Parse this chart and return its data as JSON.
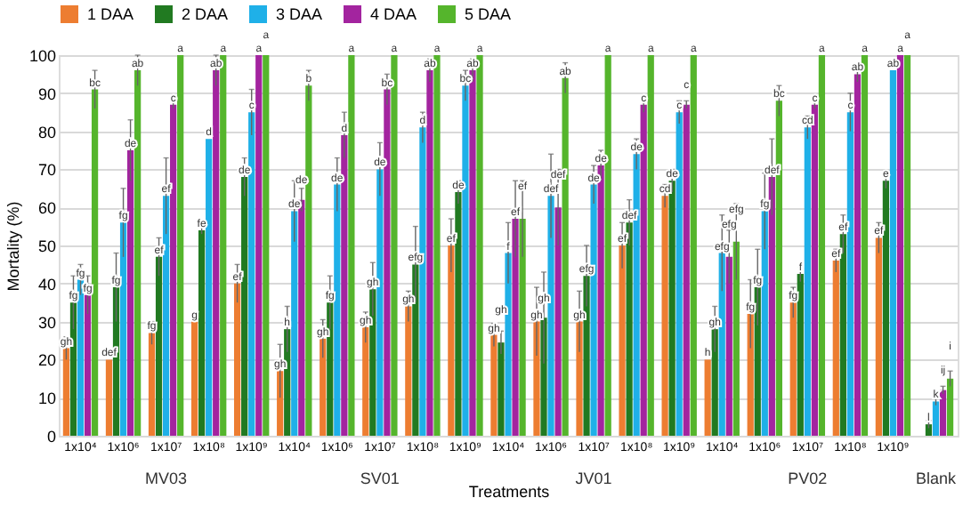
{
  "chart_data": {
    "type": "bar",
    "xlabel": "Treatments",
    "ylabel": "Mortality (%)",
    "categories": [
      "1x10⁴",
      "1x10⁶",
      "1x10⁷",
      "1x10⁸",
      "1x10⁹",
      "1x10⁴",
      "1x10⁶",
      "1x10⁷",
      "1x10⁸",
      "1x10⁹",
      "1x10⁴",
      "1x10⁶",
      "1x10⁷",
      "1x10⁸",
      "1x10⁹",
      "1x10⁴",
      "1x10⁶",
      "1x10⁷",
      "1x10⁸",
      "1x10⁹",
      null
    ],
    "annotations": [
      "MV03",
      "SV01",
      "JV01",
      "PV02",
      "Blank"
    ],
    "ylim": [
      0,
      100
    ],
    "yticks": [
      0,
      10,
      20,
      30,
      40,
      50,
      60,
      70,
      80,
      90,
      100
    ],
    "grid": "y",
    "legend": "top",
    "series": [
      {
        "name": "1 DAA",
        "color": "#ed7d31",
        "values": [
          23,
          20,
          27,
          30,
          40,
          17,
          25.5,
          28.5,
          34,
          50,
          26.5,
          30,
          30,
          50,
          63,
          20,
          32,
          35,
          46,
          52,
          0
        ],
        "errors": [
          3,
          null,
          3,
          null,
          5,
          7,
          5,
          4,
          4,
          7,
          3,
          9,
          8,
          6,
          3,
          null,
          9,
          4,
          3,
          4,
          null
        ],
        "value_labels": [
          "gh",
          "def",
          "fg",
          "g",
          "ef",
          "gh",
          "gh",
          "gh",
          "gh",
          "ef",
          "gh",
          "gh",
          "gh",
          "ef",
          "cd",
          "h",
          "fg",
          "fg",
          "ef",
          "ef",
          null
        ]
      },
      {
        "name": "2 DAA",
        "color": "#217a21",
        "values": [
          35,
          39,
          47,
          54,
          68,
          28,
          35,
          38.5,
          45,
          64,
          24.5,
          31,
          42,
          56,
          67,
          28,
          39,
          42.5,
          53,
          67,
          3
        ],
        "errors": [
          7,
          9,
          5,
          1,
          5,
          6,
          7,
          7,
          10,
          3,
          3,
          12,
          8,
          6,
          3,
          6,
          10,
          2,
          5,
          2,
          1
        ],
        "value_labels": [
          "fg",
          "fg",
          "ef",
          "fe",
          "de",
          "h",
          "fg",
          "gh",
          "efg",
          "de",
          "gh",
          "gh",
          "efg",
          "def",
          "de",
          "gh",
          "fg",
          "f",
          "ef",
          "e",
          "l"
        ]
      },
      {
        "name": "3 DAA",
        "color": "#1fb0e8",
        "values": [
          41,
          56,
          63,
          78,
          85,
          59,
          66,
          70,
          81,
          92,
          48,
          63,
          66,
          74,
          85,
          48,
          59,
          81,
          85,
          96,
          9
        ],
        "errors": [
          4,
          9,
          10,
          null,
          6,
          8,
          7,
          7,
          4,
          4,
          8,
          11,
          5,
          4,
          3,
          10,
          10,
          3,
          5,
          null,
          1
        ],
        "value_labels": [
          "fg",
          "fg",
          "ef",
          "d",
          "c",
          "de",
          "de",
          "de",
          "d",
          "bc",
          "f",
          "def",
          "de",
          "de",
          "c",
          "efg",
          "fg",
          "cd",
          "c",
          "ab",
          "k"
        ]
      },
      {
        "name": "4 DAA",
        "color": "#a3249f",
        "values": [
          37,
          75,
          87,
          96,
          100,
          62,
          79,
          91,
          96,
          96,
          57,
          60,
          71,
          87,
          87,
          47,
          68,
          87,
          95,
          100,
          12
        ],
        "errors": [
          5,
          8,
          1,
          4,
          null,
          3,
          6,
          4,
          3,
          3,
          10,
          10,
          4,
          2,
          1,
          7,
          10,
          1,
          2,
          null,
          1
        ],
        "value_labels": [
          "fg",
          "de",
          "c",
          "ab",
          "a",
          "de",
          "d",
          "bc",
          "ab",
          "ab",
          "ef",
          "def",
          "de",
          "c",
          "c",
          "efg",
          "def",
          "c",
          "ab",
          "a",
          "ij"
        ]
      },
      {
        "name": "5 DAA",
        "color": "#55b52c",
        "values": [
          91,
          96,
          100,
          100,
          100,
          92,
          100,
          100,
          100,
          100,
          57,
          94,
          100,
          100,
          100,
          51,
          88,
          100,
          100,
          100,
          15
        ],
        "errors": [
          5,
          4,
          null,
          null,
          null,
          4,
          null,
          null,
          null,
          null,
          10,
          4,
          null,
          null,
          null,
          10,
          4,
          null,
          null,
          null,
          2
        ],
        "value_labels": [
          "bc",
          "ab",
          "a",
          "a",
          "a",
          "b",
          "a",
          "a",
          "a",
          "a",
          "ef",
          "ab",
          "a",
          "a",
          "a",
          "efg",
          "bc",
          "a",
          "a",
          "a",
          "i"
        ]
      }
    ]
  }
}
